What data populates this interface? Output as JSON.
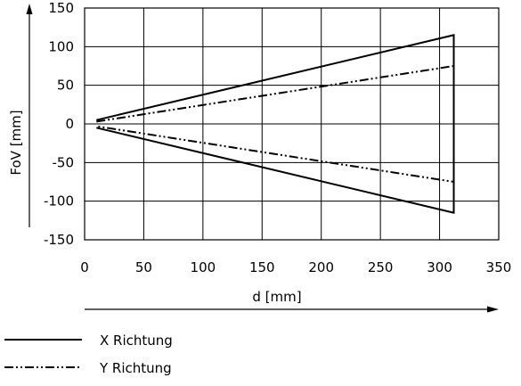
{
  "chart_data": {
    "type": "line",
    "title": "",
    "xlabel": "d [mm]",
    "ylabel": "FoV [mm]",
    "xlim": [
      0,
      350
    ],
    "ylim": [
      -150,
      150
    ],
    "x_ticks": [
      "0",
      "50",
      "100",
      "150",
      "200",
      "250",
      "300",
      "350"
    ],
    "y_ticks": [
      "150",
      "100",
      "50",
      "0",
      "-50",
      "-100",
      "-150"
    ],
    "grid": true,
    "legend_position": "bottom-left",
    "series": [
      {
        "name": "X Richtung",
        "style": "solid",
        "color": "#000000",
        "points": [
          [
            10,
            5
          ],
          [
            312,
            115
          ],
          [
            312,
            -115
          ],
          [
            10,
            -5
          ]
        ]
      },
      {
        "name": "Y Richtung",
        "style": "dash-dot-dot",
        "color": "#000000",
        "points": [
          [
            10,
            3
          ],
          [
            312,
            75
          ],
          [
            312,
            -75
          ],
          [
            10,
            -3
          ]
        ]
      }
    ]
  }
}
